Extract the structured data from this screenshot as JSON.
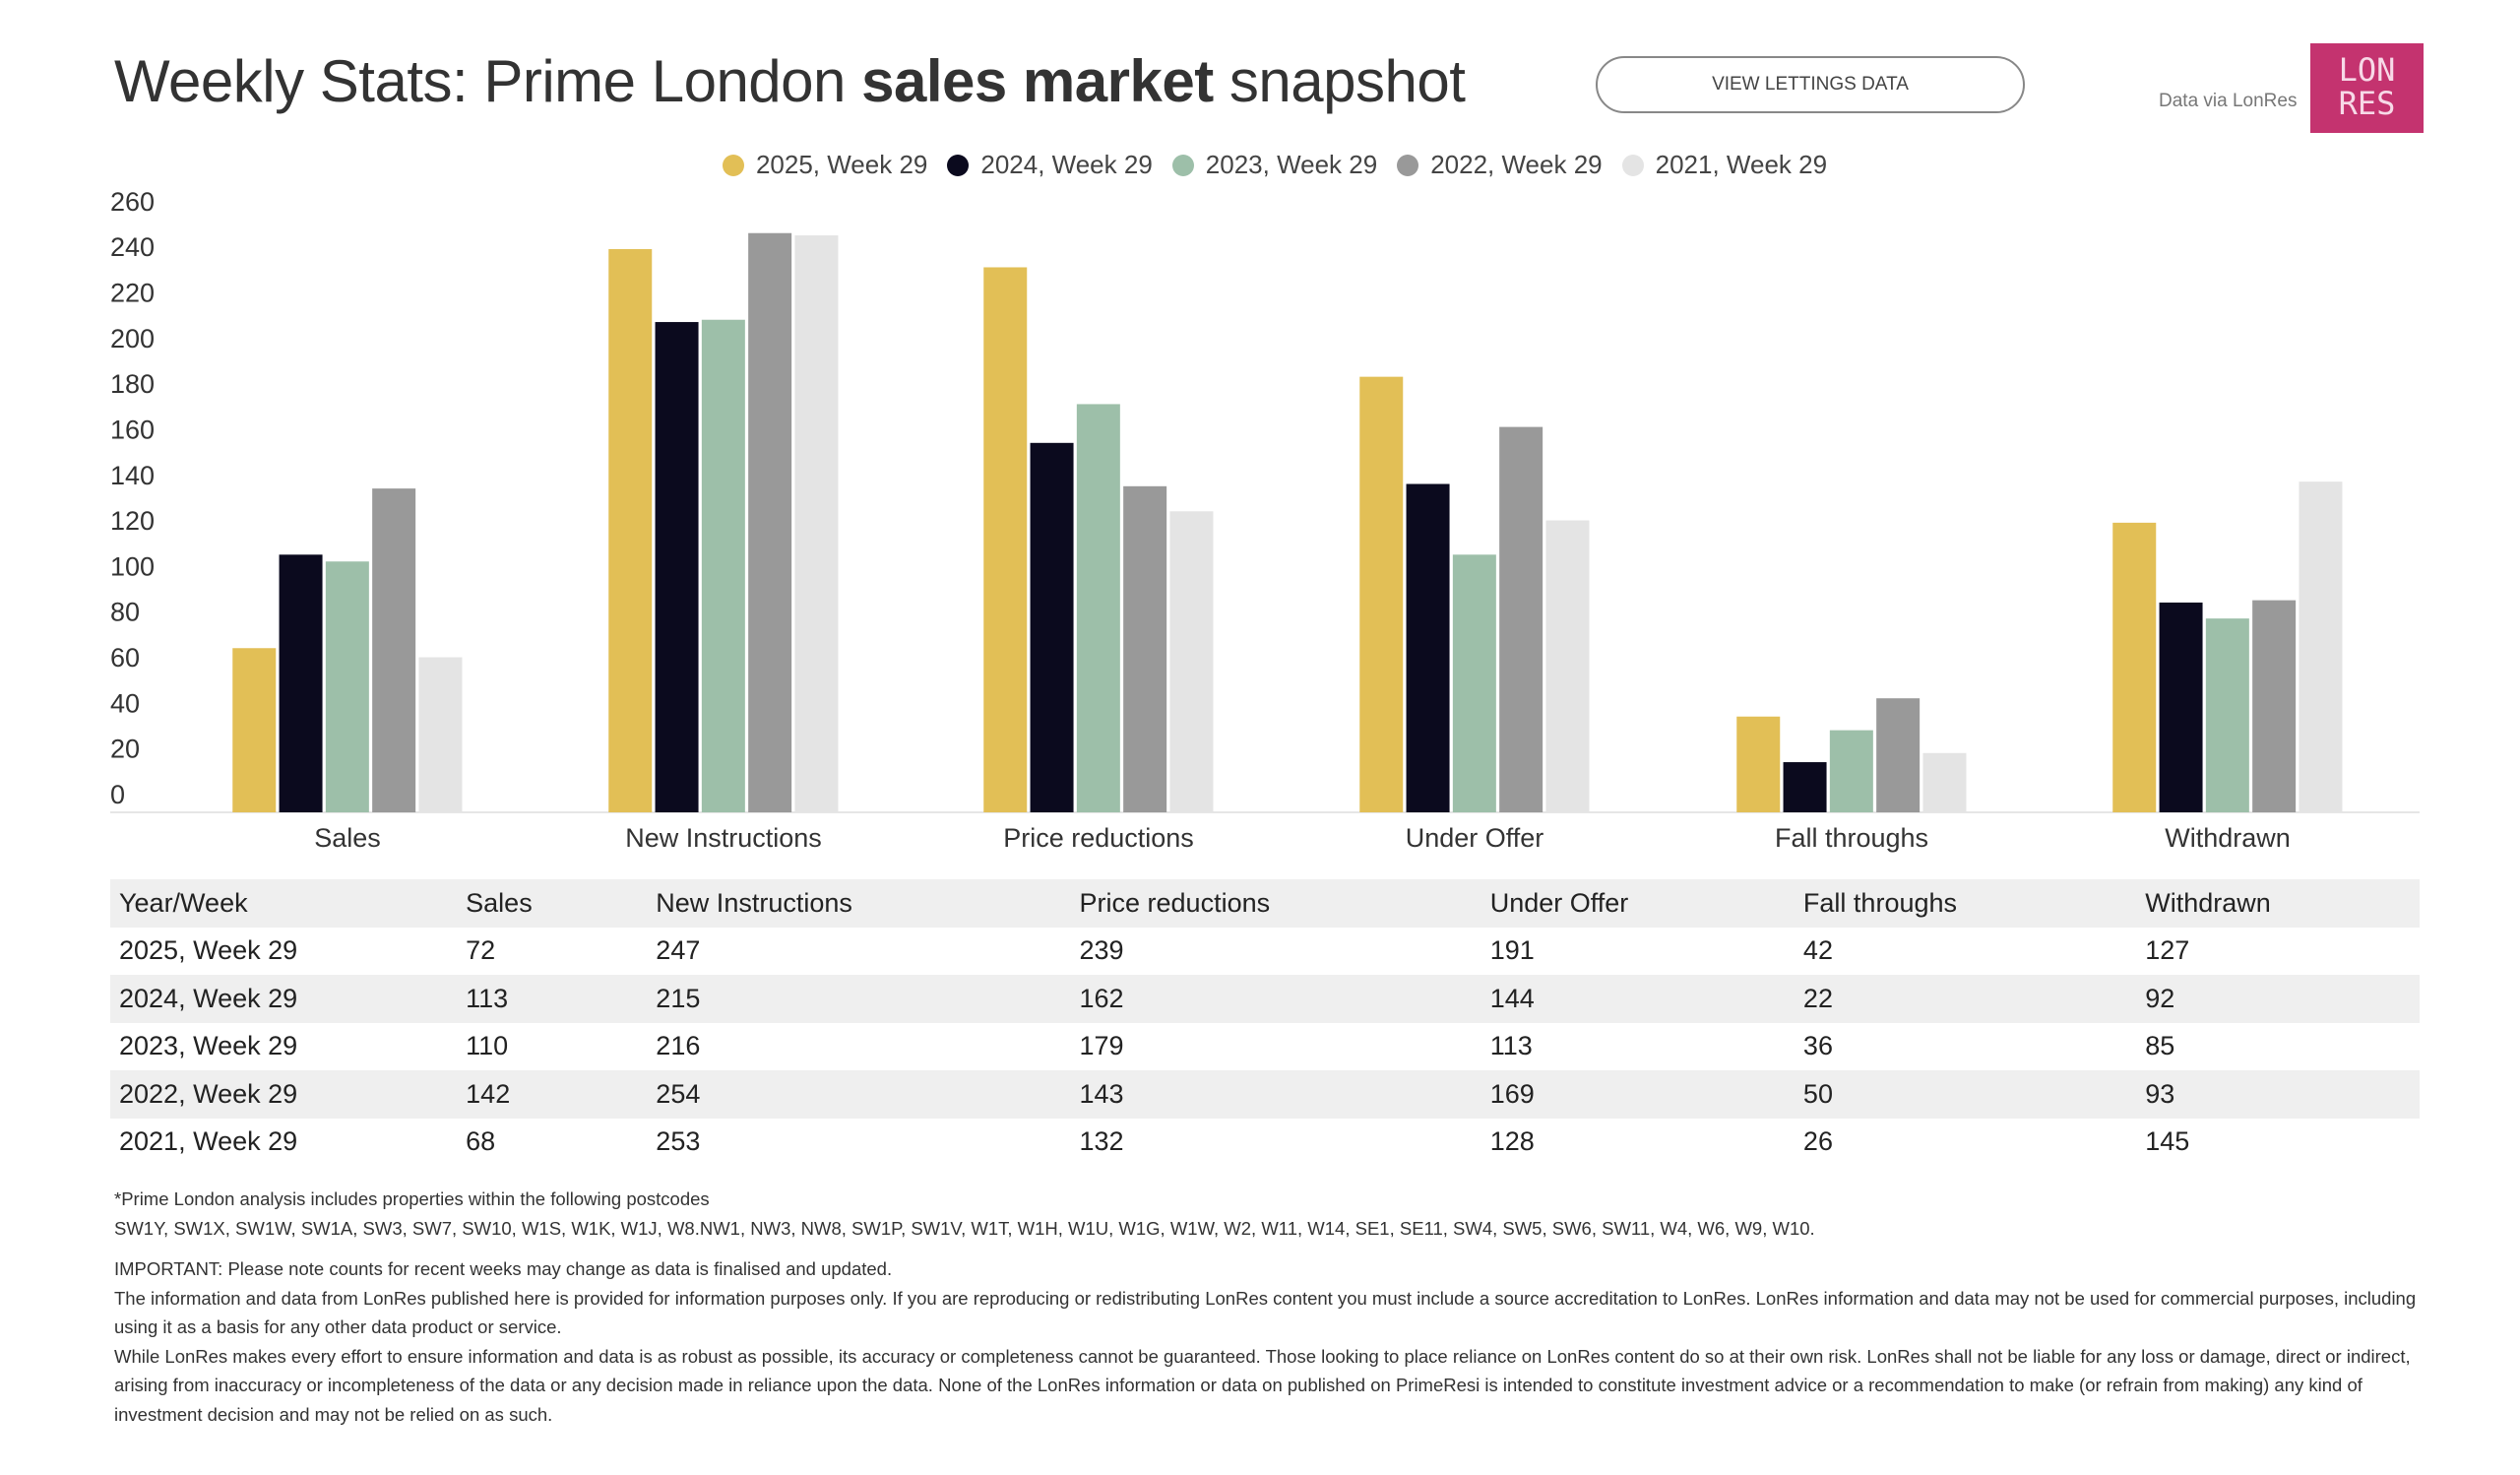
{
  "header": {
    "title_regular_1": "Weekly Stats: Prime London ",
    "title_bold": "sales market",
    "title_regular_2": " snapshot",
    "button_label": "VIEW LETTINGS DATA",
    "data_via": "Data via LonRes",
    "logo_text": [
      "LON",
      "RES"
    ],
    "logo_color": "#c4336f"
  },
  "chart_data": {
    "type": "bar",
    "categories": [
      "Sales",
      "New Instructions",
      "Price reductions",
      "Under Offer",
      "Fall throughs",
      "Withdrawn"
    ],
    "series": [
      {
        "name": "2025, Week 29",
        "color": "#e2bf56",
        "values": [
          72,
          247,
          239,
          191,
          42,
          127
        ]
      },
      {
        "name": "2024, Week 29",
        "color": "#0b0a1e",
        "values": [
          113,
          215,
          162,
          144,
          22,
          92
        ]
      },
      {
        "name": "2023, Week 29",
        "color": "#9dbfa9",
        "values": [
          110,
          216,
          179,
          113,
          36,
          85
        ]
      },
      {
        "name": "2022, Week 29",
        "color": "#999999",
        "values": [
          142,
          254,
          143,
          169,
          50,
          93
        ]
      },
      {
        "name": "2021, Week 29",
        "color": "#e4e4e4",
        "values": [
          68,
          253,
          132,
          128,
          26,
          145
        ]
      }
    ],
    "yticks": [
      "0",
      "20",
      "40",
      "60",
      "80",
      "100",
      "120",
      "140",
      "160",
      "180",
      "200",
      "220",
      "240",
      "260"
    ],
    "ylim": [
      0,
      260
    ],
    "grid": false,
    "legend": "top-center"
  },
  "table": {
    "headers": [
      "Year/Week",
      "Sales",
      "New Instructions",
      "Price reductions",
      "Under Offer",
      "Fall throughs",
      "Withdrawn"
    ],
    "rows": [
      [
        "2025, Week 29",
        "72",
        "247",
        "239",
        "191",
        "42",
        "127"
      ],
      [
        "2024, Week 29",
        "113",
        "215",
        "162",
        "144",
        "22",
        "92"
      ],
      [
        "2023, Week 29",
        "110",
        "216",
        "179",
        "113",
        "36",
        "85"
      ],
      [
        "2022, Week 29",
        "142",
        "254",
        "143",
        "169",
        "50",
        "93"
      ],
      [
        "2021, Week 29",
        "68",
        "253",
        "132",
        "128",
        "26",
        "145"
      ]
    ]
  },
  "notes": {
    "postcodes_intro": "*Prime London analysis includes properties within the following postcodes",
    "postcodes": "SW1Y, SW1X, SW1W, SW1A, SW3, SW7, SW10, W1S, W1K, W1J, W8.NW1, NW3, NW8, SW1P, SW1V, W1T, W1H, W1U, W1G, W1W, W2, W11, W14, SE1, SE11, SW4, SW5, SW6, SW11, W4, W6, W9, W10.",
    "important": "IMPORTANT: Please note counts for recent weeks may change as data is finalised and updated.",
    "info": "The information and data from LonRes published here is provided for information purposes only. If you are reproducing or redistributing LonRes content you must include a source accreditation to LonRes. LonRes information and data may not be used for commercial purposes, including using it as a basis for any other data product or service.",
    "disclaimer": "While LonRes makes every effort to ensure information and data is as robust as possible, its accuracy or completeness cannot be guaranteed. Those looking to place reliance on LonRes content do so at their own risk. LonRes shall not be liable for any loss or damage, direct or indirect, arising from inaccuracy or incompleteness of the data or any decision made in reliance upon the data. None of the LonRes information or data on published on PrimeResi is intended to constitute investment advice or a recommendation to make (or refrain from making) any kind of investment decision and may not be relied on as such."
  }
}
